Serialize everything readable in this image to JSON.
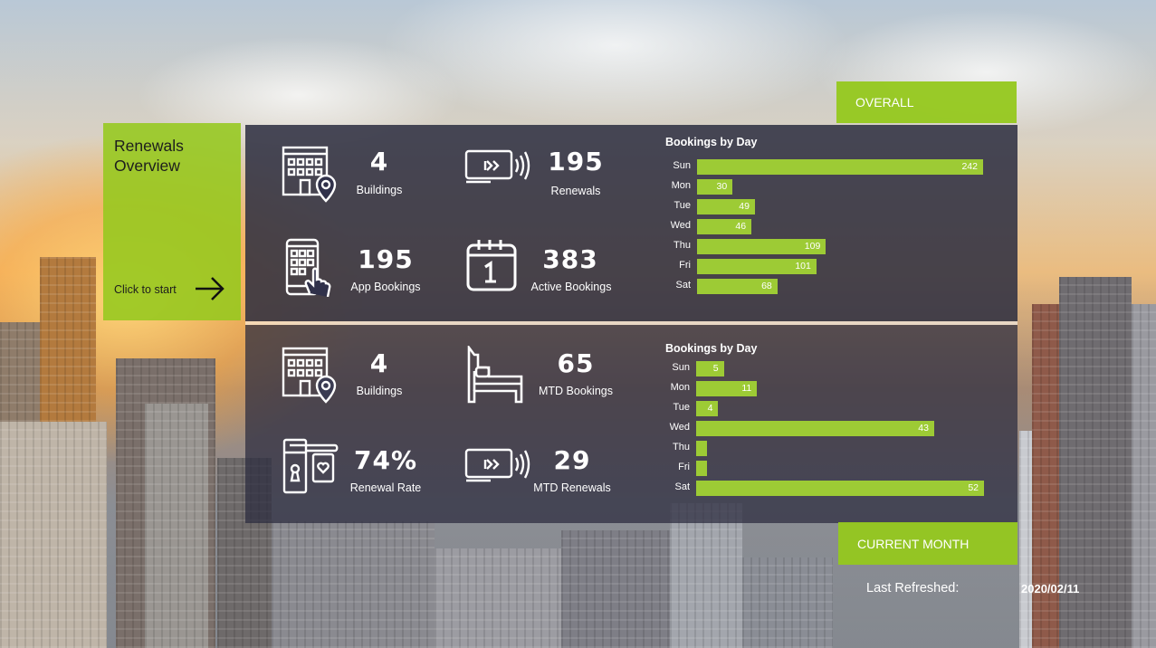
{
  "start_card": {
    "title": "Renewals Overview",
    "cta_label": "Click to start",
    "arrow_icon": "arrow-right-icon"
  },
  "tags": {
    "overall": "OVERALL",
    "current_month": "CURRENT MONTH"
  },
  "overall": {
    "kpis": [
      {
        "value": "4",
        "label": "Buildings",
        "icon": "building-location-icon"
      },
      {
        "value": "195",
        "label": "Renewals",
        "icon": "card-tap-icon"
      },
      {
        "value": "195",
        "label": "App Bookings",
        "icon": "mobile-app-icon"
      },
      {
        "value": "383",
        "label": "Active Bookings",
        "icon": "calendar-icon"
      }
    ]
  },
  "current_month": {
    "kpis": [
      {
        "value": "4",
        "label": "Buildings",
        "icon": "building-location-icon"
      },
      {
        "value": "65",
        "label": "MTD Bookings",
        "icon": "bed-icon"
      },
      {
        "value": "74%",
        "label": "Renewal Rate",
        "icon": "door-lock-icon"
      },
      {
        "value": "29",
        "label": "MTD Renewals",
        "icon": "card-tap-icon"
      }
    ]
  },
  "last_refreshed": {
    "label": "Last Refreshed:",
    "value": "2020/02/11"
  },
  "colors": {
    "accent": "#9dcb35",
    "panel": "#2c2d40"
  },
  "chart_data": [
    {
      "type": "bar",
      "orientation": "horizontal",
      "title": "Bookings by Day",
      "categories": [
        "Sun",
        "Mon",
        "Tue",
        "Wed",
        "Thu",
        "Fri",
        "Sat"
      ],
      "values": [
        242,
        30,
        49,
        46,
        109,
        101,
        68
      ],
      "data_labels": [
        "242",
        "30",
        "49",
        "46",
        "109",
        "101",
        "68"
      ],
      "xlim": [
        0,
        242
      ]
    },
    {
      "type": "bar",
      "orientation": "horizontal",
      "title": "Bookings by Day",
      "categories": [
        "Sun",
        "Mon",
        "Tue",
        "Wed",
        "Thu",
        "Fri",
        "Sat"
      ],
      "values": [
        5,
        11,
        4,
        43,
        2,
        2,
        52
      ],
      "data_labels": [
        "5",
        "11",
        "4",
        "43",
        "",
        "",
        "52"
      ],
      "xlim": [
        0,
        52
      ]
    }
  ]
}
